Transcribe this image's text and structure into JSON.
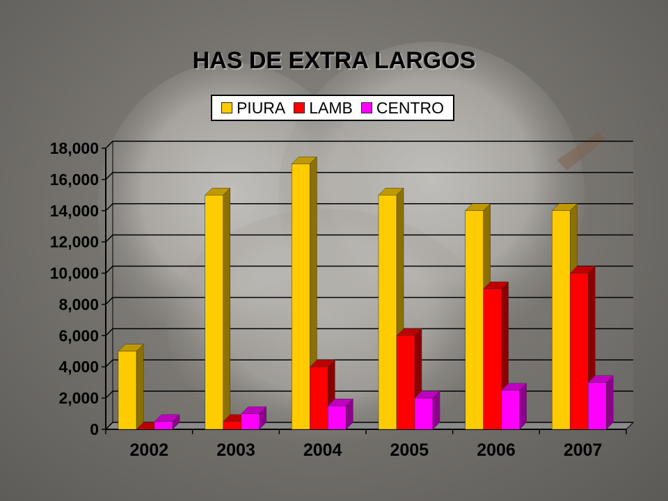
{
  "title": "HAS DE EXTRA LARGOS",
  "colors": {
    "PIURA": "#FFCC00",
    "LAMB": "#FF0000",
    "CENTRO": "#FF00FF"
  },
  "chart_data": {
    "type": "bar",
    "title": "HAS DE EXTRA LARGOS",
    "xlabel": "",
    "ylabel": "",
    "categories": [
      "2002",
      "2003",
      "2004",
      "2005",
      "2006",
      "2007"
    ],
    "series": [
      {
        "name": "PIURA",
        "values": [
          5000,
          15000,
          17000,
          15000,
          14000,
          14000
        ]
      },
      {
        "name": "LAMB",
        "values": [
          0,
          500,
          4000,
          6000,
          9000,
          10000
        ]
      },
      {
        "name": "CENTRO",
        "values": [
          500,
          1000,
          1500,
          2000,
          2500,
          3000
        ]
      }
    ],
    "ylim": [
      0,
      18000
    ],
    "yticks": [
      "0",
      "2,000",
      "4,000",
      "6,000",
      "8,000",
      "10,000",
      "12,000",
      "14,000",
      "16,000",
      "18,000"
    ],
    "grid": true,
    "legend_position": "top"
  }
}
